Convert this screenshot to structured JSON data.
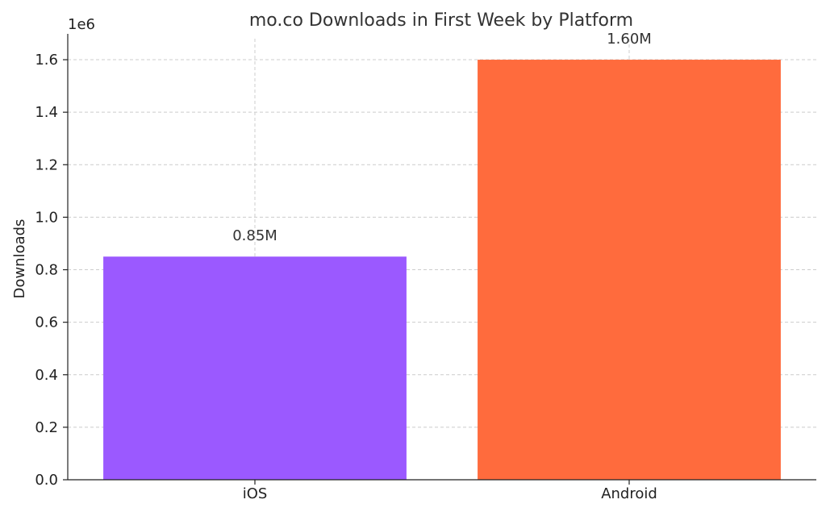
{
  "chart_data": {
    "type": "bar",
    "title": "mo.co Downloads in First Week by Platform",
    "xlabel": "",
    "ylabel": "Downloads",
    "y_offset_label": "1e6",
    "categories": [
      "iOS",
      "Android"
    ],
    "values": [
      850000,
      1600000
    ],
    "data_labels": [
      "0.85M",
      "1.60M"
    ],
    "colors": [
      "#9b59ff",
      "#ff6b3d"
    ],
    "ylim": [
      0,
      1680000
    ],
    "yticks": [
      0,
      200000,
      400000,
      600000,
      800000,
      1000000,
      1200000,
      1400000,
      1600000
    ],
    "ytick_labels": [
      "0.0",
      "0.2",
      "0.4",
      "0.6",
      "0.8",
      "1.0",
      "1.2",
      "1.4",
      "1.6"
    ],
    "grid": true,
    "legend": "none"
  }
}
